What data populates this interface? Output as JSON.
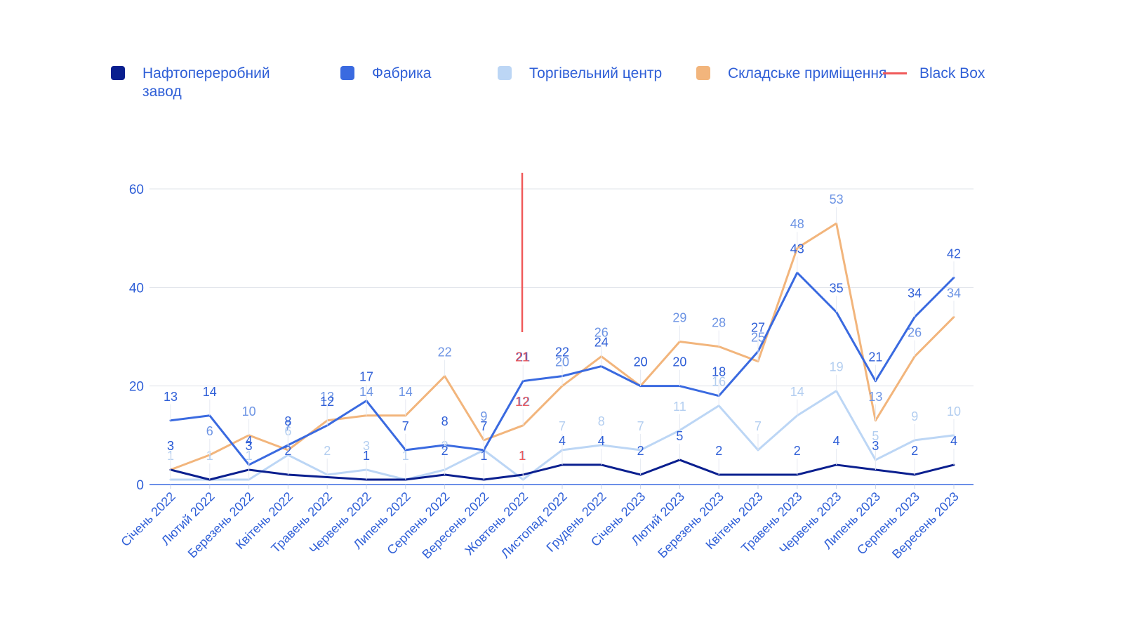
{
  "chart_data": {
    "type": "line",
    "title": "",
    "xlabel": "",
    "ylabel": "",
    "ylim": [
      0,
      60
    ],
    "yticks": [
      0,
      20,
      40,
      60
    ],
    "grid": true,
    "legend_position": "top",
    "categories": [
      "Січень 2022",
      "Лютий 2022",
      "Березень 2022",
      "Квітень 2022",
      "Травень 2022",
      "Червень 2022",
      "Липень 2022",
      "Серпень 2022",
      "Вересень 2022",
      "Жовтень 2022",
      "Листопад 2022",
      "Грудень 2022",
      "Січень 2023",
      "Лютий 2023",
      "Березень 2023",
      "Квітень 2023",
      "Травень 2023",
      "Червень 2023",
      "Липень 2023",
      "Серпень 2023",
      "Вересень 2023"
    ],
    "series": [
      {
        "name": "Нафтопереробний завод",
        "color": "#0a1f8f",
        "label_color": "#2f5fd7",
        "values": [
          3,
          1,
          3,
          2,
          1.5,
          1,
          1,
          2,
          1,
          2,
          4,
          4,
          2,
          5,
          2,
          2,
          2,
          4,
          3,
          2,
          4
        ],
        "labels": [
          "3",
          "",
          "3",
          "2",
          "",
          "1",
          "",
          "2",
          "1",
          "",
          "4",
          "4",
          "2",
          "5",
          "2",
          "",
          "2",
          "4",
          "3",
          "2",
          "4"
        ]
      },
      {
        "name": "Фабрика",
        "color": "#3a6ae0",
        "label_color": "#2f5fd7",
        "values": [
          13,
          14,
          4,
          8,
          12,
          17,
          7,
          8,
          7,
          21,
          22,
          24,
          20,
          20,
          18,
          27,
          43,
          35,
          21,
          34,
          42
        ],
        "labels": [
          "13",
          "14",
          "4",
          "8",
          "12",
          "17",
          "7",
          "8",
          "7",
          "21",
          "22",
          "24",
          "20",
          "20",
          "18",
          "27",
          "43",
          "35",
          "21",
          "34",
          "42"
        ]
      },
      {
        "name": "Торгівельний центр",
        "color": "#bcd6f5",
        "label_color": "#b3cef0",
        "values": [
          1,
          1,
          1,
          6,
          2,
          3,
          1,
          3,
          7,
          1,
          7,
          8,
          7,
          11,
          16,
          7,
          14,
          19,
          5,
          9,
          10
        ],
        "labels": [
          "1",
          "1",
          "1",
          "6",
          "2",
          "3",
          "1",
          "3",
          "7",
          "1",
          "7",
          "8",
          "7",
          "11",
          "16",
          "7",
          "14",
          "19",
          "5",
          "9",
          "10"
        ]
      },
      {
        "name": "Складське приміщення",
        "color": "#f2b57c",
        "label_color": "#6d94e4",
        "values": [
          3,
          6,
          10,
          7,
          13,
          14,
          14,
          22,
          9,
          12,
          20,
          26,
          20,
          29,
          28,
          25,
          48,
          53,
          13,
          26,
          34
        ],
        "labels": [
          "3",
          "6",
          "10",
          "7",
          "13",
          "14",
          "14",
          "22",
          "9",
          "12",
          "20",
          "26",
          "20",
          "29",
          "28",
          "25",
          "48",
          "53",
          "13",
          "26",
          "34"
        ]
      }
    ],
    "black_box": {
      "name": "Black Box",
      "color": "#f05a5a",
      "category_index": 9,
      "labels": [
        "21",
        "12",
        "1"
      ],
      "label_values": [
        21,
        12,
        1
      ]
    }
  }
}
